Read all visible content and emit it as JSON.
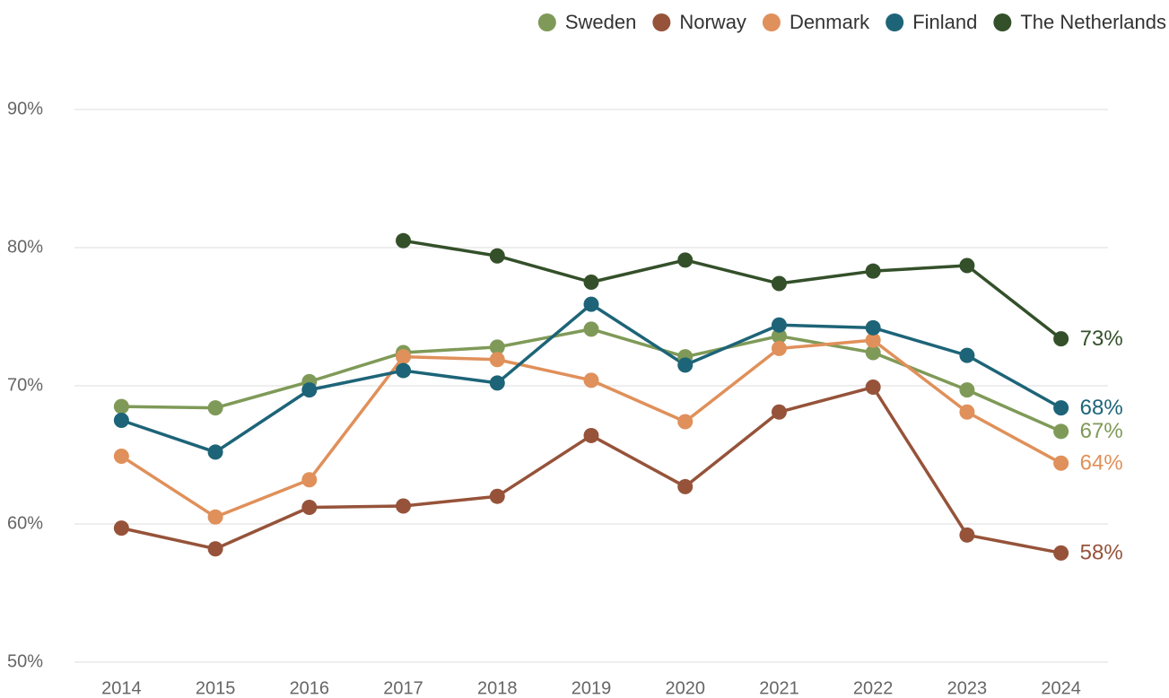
{
  "chart_data": {
    "type": "line",
    "categories": [
      "2014",
      "2015",
      "2016",
      "2017",
      "2018",
      "2019",
      "2020",
      "2021",
      "2022",
      "2023",
      "2024"
    ],
    "series": [
      {
        "name": "Sweden",
        "color": "#7f9a58",
        "values": [
          68.5,
          68.4,
          70.3,
          72.4,
          72.8,
          74.1,
          72.1,
          73.6,
          72.4,
          69.7,
          66.7
        ],
        "value_labels": [
          null,
          null,
          null,
          null,
          null,
          null,
          null,
          null,
          null,
          null,
          "67%"
        ]
      },
      {
        "name": "Norway",
        "color": "#96533a",
        "values": [
          59.7,
          58.2,
          61.2,
          61.3,
          62.0,
          66.4,
          62.7,
          68.1,
          69.9,
          59.2,
          57.9
        ],
        "value_labels": [
          null,
          null,
          null,
          null,
          null,
          null,
          null,
          null,
          null,
          null,
          "58%"
        ]
      },
      {
        "name": "Denmark",
        "color": "#e0905a",
        "values": [
          64.9,
          60.5,
          63.2,
          72.1,
          71.9,
          70.4,
          67.4,
          72.7,
          73.3,
          68.1,
          64.4
        ],
        "value_labels": [
          null,
          null,
          null,
          null,
          null,
          null,
          null,
          null,
          null,
          null,
          "64%"
        ]
      },
      {
        "name": "Finland",
        "color": "#1d6478",
        "values": [
          67.5,
          65.2,
          69.7,
          71.1,
          70.2,
          75.9,
          71.5,
          74.4,
          74.2,
          72.2,
          68.4
        ],
        "value_labels": [
          null,
          null,
          null,
          null,
          null,
          null,
          null,
          null,
          null,
          null,
          "68%"
        ]
      },
      {
        "name": "The Netherlands",
        "color": "#34502a",
        "values": [
          null,
          null,
          null,
          80.5,
          79.4,
          77.5,
          79.1,
          77.4,
          78.3,
          78.7,
          73.4
        ],
        "value_labels": [
          null,
          null,
          null,
          null,
          null,
          null,
          null,
          null,
          null,
          null,
          "73%"
        ]
      }
    ],
    "ylim": [
      50,
      90
    ],
    "yticks": [
      {
        "value": 50,
        "label": "50%"
      },
      {
        "value": 60,
        "label": "60%"
      },
      {
        "value": 70,
        "label": "70%"
      },
      {
        "value": 80,
        "label": "80%"
      },
      {
        "value": 90,
        "label": "90%"
      }
    ],
    "grid": true,
    "legend": "top-right"
  }
}
